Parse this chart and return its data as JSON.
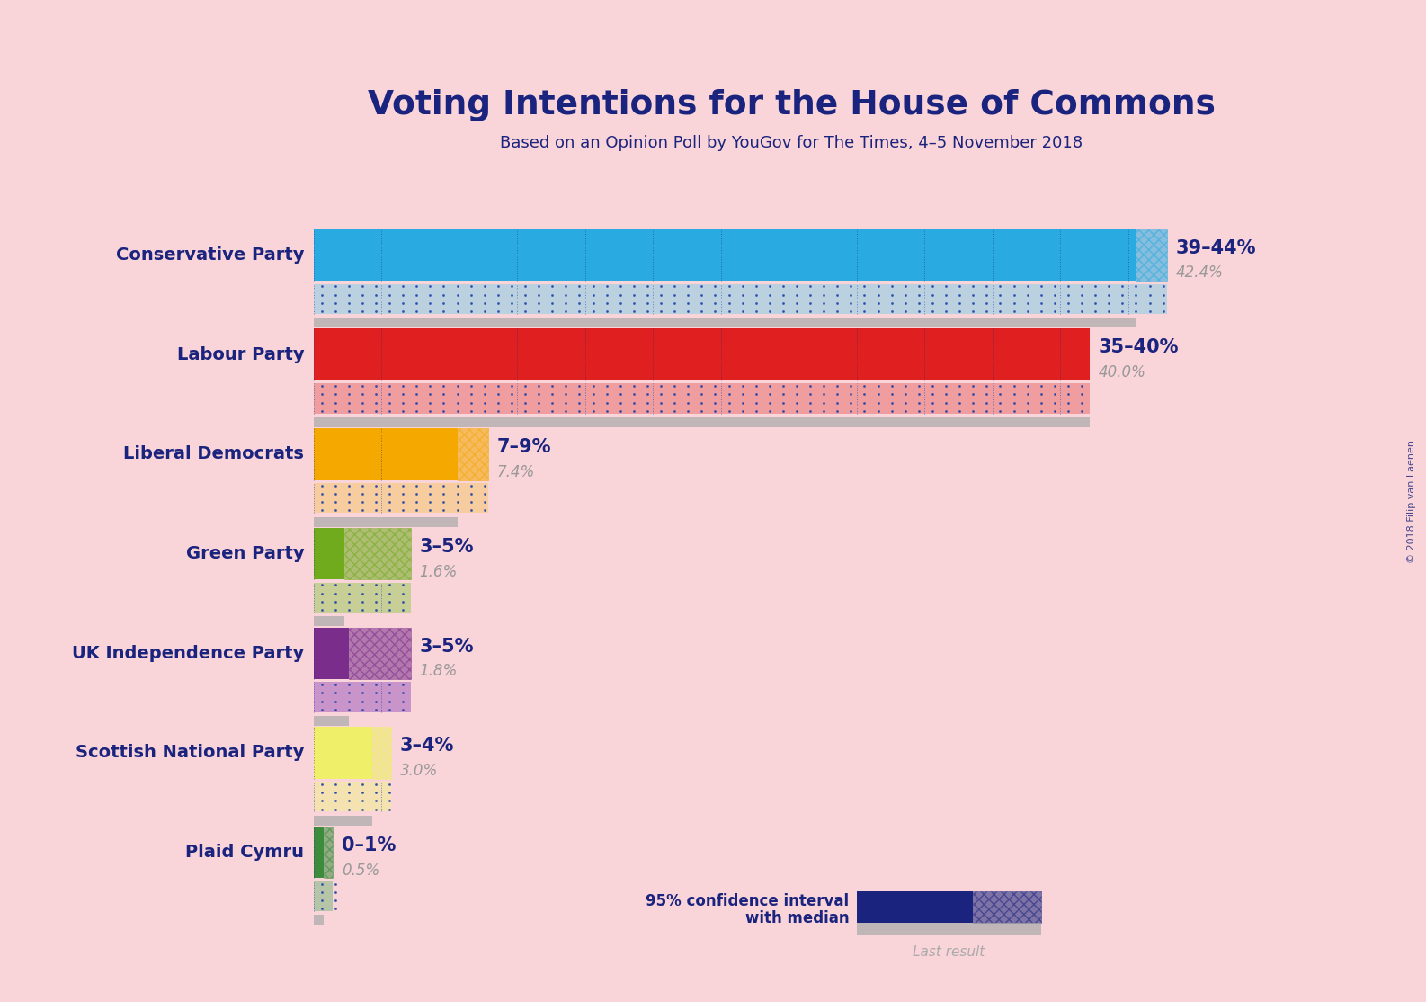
{
  "title": "Voting Intentions for the House of Commons",
  "subtitle": "Based on an Opinion Poll by YouGov for The Times, 4–5 November 2018",
  "background_color": "#f9d4d8",
  "parties": [
    "Conservative Party",
    "Labour Party",
    "Liberal Democrats",
    "Green Party",
    "UK Independence Party",
    "Scottish National Party",
    "Plaid Cymru"
  ],
  "median_values": [
    42.4,
    40.0,
    7.4,
    1.6,
    1.8,
    3.0,
    0.5
  ],
  "ci_low": [
    39,
    35,
    7,
    3,
    3,
    3,
    0
  ],
  "ci_high": [
    44,
    40,
    9,
    5,
    5,
    4,
    1
  ],
  "ci_labels": [
    "39–44%",
    "35–40%",
    "7–9%",
    "3–5%",
    "3–5%",
    "3–4%",
    "0–1%"
  ],
  "median_labels": [
    "42.4%",
    "40.0%",
    "7.4%",
    "1.6%",
    "1.8%",
    "3.0%",
    "0.5%"
  ],
  "bar_colors": [
    "#29ABE2",
    "#E02020",
    "#F5A800",
    "#70AB1E",
    "#7B2D8B",
    "#EFEF6A",
    "#3D8C3D"
  ],
  "ci_dot_colors": [
    "#8ACFE8",
    "#E87070",
    "#F7C870",
    "#A0CC60",
    "#A060C0",
    "#F0F090",
    "#80B880"
  ],
  "xlim_max": 50,
  "title_color": "#1A237E",
  "label_color": "#1A237E",
  "copyright_text": "© 2018 Filip van Laenen",
  "legend_text_line1": "95% confidence interval",
  "legend_text_line2": "with median",
  "legend_last_result": "Last result",
  "legend_navy": "#1A237E",
  "last_result_color": "#aaaaaa"
}
